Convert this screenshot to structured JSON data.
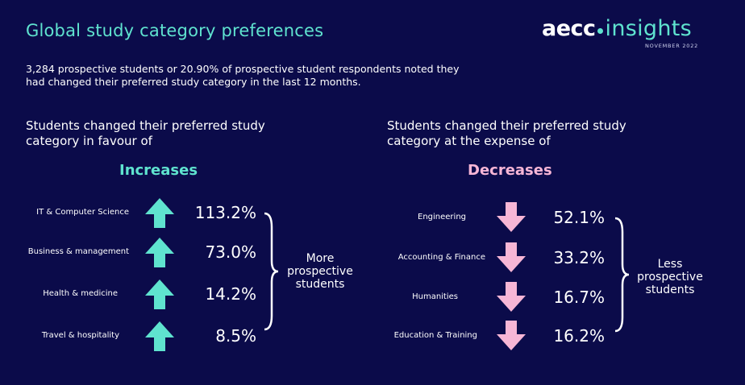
{
  "title": "Global study category preferences",
  "brand": {
    "name_left": "aecc",
    "name_right": "insights",
    "date": "NOVEMBER 2022"
  },
  "intro": "3,284 prospective students or 20.90% of prospective student respondents noted they had changed their preferred study category in the last 12 months.",
  "increases": {
    "heading": "Students changed their preferred study category in favour of",
    "label": "Increases",
    "color": "#5fe3cf",
    "icon": "arrow-up-icon",
    "summary": "More prospective students",
    "items": [
      {
        "category": "IT & Computer Science",
        "value": "113.2%"
      },
      {
        "category": "Business & management",
        "value": "73.0%"
      },
      {
        "category": "Health & medicine",
        "value": "14.2%"
      },
      {
        "category": "Travel & hospitality",
        "value": "8.5%"
      }
    ]
  },
  "decreases": {
    "heading": "Students changed their preferred study category at the expense of",
    "label": "Decreases",
    "color": "#f7b6d6",
    "icon": "arrow-down-icon",
    "summary": "Less prospective students",
    "items": [
      {
        "category": "Engineering",
        "value": "52.1%"
      },
      {
        "category": "Accounting & Finance",
        "value": "33.2%"
      },
      {
        "category": "Humanities",
        "value": "16.7%"
      },
      {
        "category": "Education & Training",
        "value": "16.2%"
      }
    ]
  }
}
